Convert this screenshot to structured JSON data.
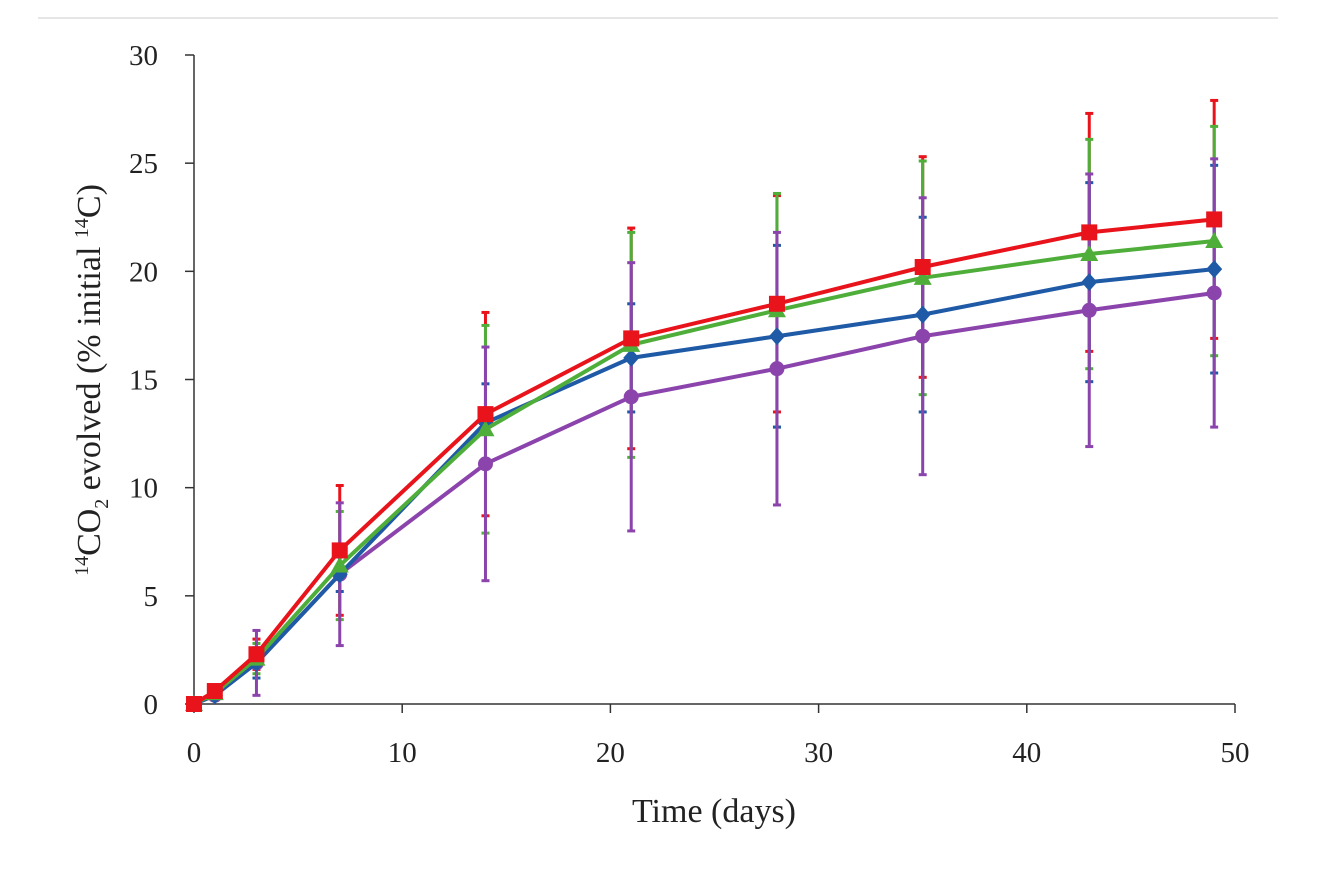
{
  "chart_data": {
    "type": "line",
    "title": "",
    "xlabel": "Time (days)",
    "ylabel": {
      "iso1": "14",
      "co": "CO",
      "sub": "2",
      "mid": " evolved (% initial ",
      "iso2": "14",
      "end": "C)"
    },
    "xlim": [
      0,
      50
    ],
    "ylim": [
      0,
      30
    ],
    "xticks": [
      0,
      10,
      20,
      30,
      40,
      50
    ],
    "yticks": [
      0,
      5,
      10,
      15,
      20,
      25,
      30
    ],
    "x": [
      0,
      1,
      3,
      7,
      14,
      21,
      28,
      35,
      43,
      49
    ],
    "grid": false,
    "legend": "none",
    "series": [
      {
        "name": "red",
        "marker": "square",
        "color": "#e8131b",
        "values": [
          0.0,
          0.6,
          2.3,
          7.1,
          13.4,
          16.9,
          18.5,
          20.2,
          21.8,
          22.4
        ],
        "error": [
          0.1,
          0.2,
          0.7,
          3.0,
          4.7,
          5.1,
          5.0,
          5.1,
          5.5,
          5.5
        ]
      },
      {
        "name": "green",
        "marker": "triangle",
        "color": "#4fae3a",
        "values": [
          0.0,
          0.5,
          2.1,
          6.4,
          12.7,
          16.6,
          18.2,
          19.7,
          20.8,
          21.4
        ],
        "error": [
          0.1,
          0.2,
          0.7,
          2.5,
          4.8,
          5.2,
          5.4,
          5.4,
          5.3,
          5.3
        ]
      },
      {
        "name": "blue",
        "marker": "diamond",
        "color": "#1f5aa6",
        "values": [
          0.0,
          0.4,
          1.9,
          6.0,
          13.0,
          16.0,
          17.0,
          18.0,
          19.5,
          20.1
        ],
        "error": [
          0.1,
          0.2,
          0.7,
          0.8,
          1.8,
          2.5,
          4.2,
          4.5,
          4.6,
          4.8
        ]
      },
      {
        "name": "purple",
        "marker": "circle",
        "color": "#8c44ad",
        "values": [
          0.0,
          0.4,
          1.9,
          6.0,
          11.1,
          14.2,
          15.5,
          17.0,
          18.2,
          19.0
        ],
        "error": [
          0.1,
          0.2,
          1.5,
          3.3,
          5.4,
          6.2,
          6.3,
          6.4,
          6.3,
          6.2
        ]
      }
    ]
  }
}
